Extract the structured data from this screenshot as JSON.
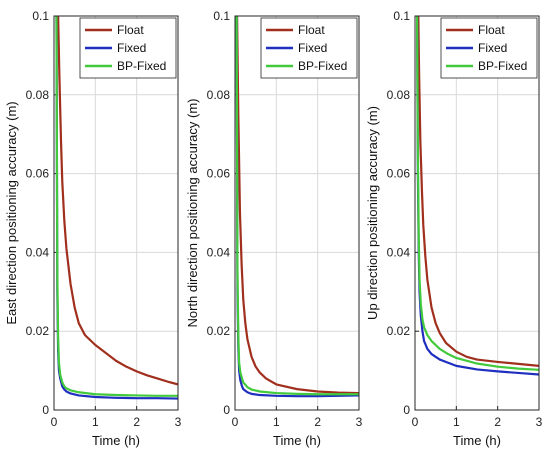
{
  "chart_data": [
    {
      "type": "line",
      "xlabel": "Time (h)",
      "ylabel": "East direction positioning accuracy (m)",
      "xlim": [
        0,
        3
      ],
      "ylim": [
        0,
        0.1
      ],
      "xticks": [
        "0",
        "1",
        "2",
        "3"
      ],
      "yticks": [
        "0",
        "0.02",
        "0.04",
        "0.06",
        "0.08",
        "0.1"
      ],
      "grid": true,
      "legend": "top-right",
      "series": [
        {
          "name": "Float",
          "color": "#a0301d",
          "x": [
            0.1,
            0.13,
            0.17,
            0.2,
            0.25,
            0.3,
            0.4,
            0.5,
            0.6,
            0.75,
            1.0,
            1.25,
            1.5,
            1.75,
            2.0,
            2.25,
            2.5,
            2.75,
            3.0
          ],
          "y": [
            0.1,
            0.085,
            0.068,
            0.058,
            0.048,
            0.041,
            0.032,
            0.026,
            0.022,
            0.019,
            0.0165,
            0.0145,
            0.0125,
            0.011,
            0.0098,
            0.0088,
            0.008,
            0.0072,
            0.0065
          ]
        },
        {
          "name": "Fixed",
          "color": "#1f2fbf",
          "x": [
            0.06,
            0.08,
            0.1,
            0.12,
            0.15,
            0.2,
            0.25,
            0.3,
            0.4,
            0.6,
            1.0,
            1.5,
            2.0,
            2.5,
            3.0
          ],
          "y": [
            0.1,
            0.03,
            0.015,
            0.01,
            0.008,
            0.006,
            0.0052,
            0.0047,
            0.0042,
            0.0037,
            0.0033,
            0.0031,
            0.003,
            0.003,
            0.0029
          ]
        },
        {
          "name": "BP-Fixed",
          "color": "#43c93c",
          "x": [
            0.06,
            0.08,
            0.1,
            0.12,
            0.15,
            0.2,
            0.25,
            0.3,
            0.4,
            0.6,
            1.0,
            1.5,
            2.0,
            2.5,
            3.0
          ],
          "y": [
            0.1,
            0.035,
            0.018,
            0.012,
            0.009,
            0.007,
            0.006,
            0.0055,
            0.005,
            0.0045,
            0.004,
            0.0038,
            0.0037,
            0.0036,
            0.0036
          ]
        }
      ]
    },
    {
      "type": "line",
      "xlabel": "Time (h)",
      "ylabel": "North direction positioning accuracy (m)",
      "xlim": [
        0,
        3
      ],
      "ylim": [
        0,
        0.1
      ],
      "xticks": [
        "0",
        "1",
        "2",
        "3"
      ],
      "yticks": [
        "0",
        "0.02",
        "0.04",
        "0.06",
        "0.08",
        "0.1"
      ],
      "grid": true,
      "legend": "top-right",
      "series": [
        {
          "name": "Float",
          "color": "#a0301d",
          "x": [
            0.05,
            0.08,
            0.12,
            0.16,
            0.2,
            0.25,
            0.3,
            0.4,
            0.5,
            0.6,
            0.75,
            1.0,
            1.5,
            2.0,
            2.5,
            3.0
          ],
          "y": [
            0.1,
            0.075,
            0.05,
            0.037,
            0.028,
            0.022,
            0.018,
            0.0135,
            0.011,
            0.0095,
            0.008,
            0.0065,
            0.0053,
            0.0047,
            0.0044,
            0.0043
          ]
        },
        {
          "name": "Fixed",
          "color": "#1f2fbf",
          "x": [
            0.04,
            0.06,
            0.08,
            0.1,
            0.13,
            0.17,
            0.2,
            0.3,
            0.4,
            0.6,
            1.0,
            1.5,
            2.0,
            2.5,
            3.0
          ],
          "y": [
            0.1,
            0.03,
            0.016,
            0.01,
            0.0075,
            0.006,
            0.0053,
            0.0045,
            0.0041,
            0.0038,
            0.0036,
            0.0035,
            0.0035,
            0.0036,
            0.0037
          ]
        },
        {
          "name": "BP-Fixed",
          "color": "#43c93c",
          "x": [
            0.04,
            0.06,
            0.08,
            0.1,
            0.13,
            0.17,
            0.2,
            0.3,
            0.4,
            0.6,
            1.0,
            1.5,
            2.0,
            2.5,
            3.0
          ],
          "y": [
            0.1,
            0.035,
            0.019,
            0.012,
            0.0095,
            0.008,
            0.007,
            0.0058,
            0.0052,
            0.0047,
            0.0043,
            0.0041,
            0.004,
            0.004,
            0.004
          ]
        }
      ]
    },
    {
      "type": "line",
      "xlabel": "Time (h)",
      "ylabel": "Up direction positioning accuracy (m)",
      "xlim": [
        0,
        3
      ],
      "ylim": [
        0,
        0.1
      ],
      "xticks": [
        "0",
        "1",
        "2",
        "3"
      ],
      "yticks": [
        "0",
        "0.02",
        "0.04",
        "0.06",
        "0.08",
        "0.1"
      ],
      "grid": true,
      "legend": "top-right",
      "series": [
        {
          "name": "Float",
          "color": "#a0301d",
          "x": [
            0.08,
            0.1,
            0.13,
            0.17,
            0.2,
            0.25,
            0.3,
            0.4,
            0.5,
            0.6,
            0.75,
            1.0,
            1.25,
            1.5,
            2.0,
            2.5,
            3.0
          ],
          "y": [
            0.1,
            0.085,
            0.068,
            0.055,
            0.047,
            0.039,
            0.033,
            0.026,
            0.022,
            0.0195,
            0.017,
            0.0148,
            0.0135,
            0.0128,
            0.0122,
            0.0117,
            0.0112
          ]
        },
        {
          "name": "Fixed",
          "color": "#1f2fbf",
          "x": [
            0.05,
            0.07,
            0.09,
            0.11,
            0.14,
            0.18,
            0.22,
            0.3,
            0.4,
            0.6,
            0.8,
            1.0,
            1.5,
            2.0,
            2.5,
            3.0
          ],
          "y": [
            0.1,
            0.06,
            0.04,
            0.03,
            0.024,
            0.02,
            0.0175,
            0.0155,
            0.0142,
            0.0128,
            0.012,
            0.0112,
            0.0103,
            0.0098,
            0.0094,
            0.009
          ]
        },
        {
          "name": "BP-Fixed",
          "color": "#43c93c",
          "x": [
            0.05,
            0.07,
            0.09,
            0.11,
            0.14,
            0.18,
            0.22,
            0.3,
            0.4,
            0.6,
            0.8,
            1.0,
            1.5,
            2.0,
            2.5,
            3.0
          ],
          "y": [
            0.1,
            0.065,
            0.044,
            0.033,
            0.027,
            0.023,
            0.021,
            0.019,
            0.0175,
            0.0155,
            0.0142,
            0.0132,
            0.0118,
            0.011,
            0.0105,
            0.0102
          ]
        }
      ]
    }
  ]
}
